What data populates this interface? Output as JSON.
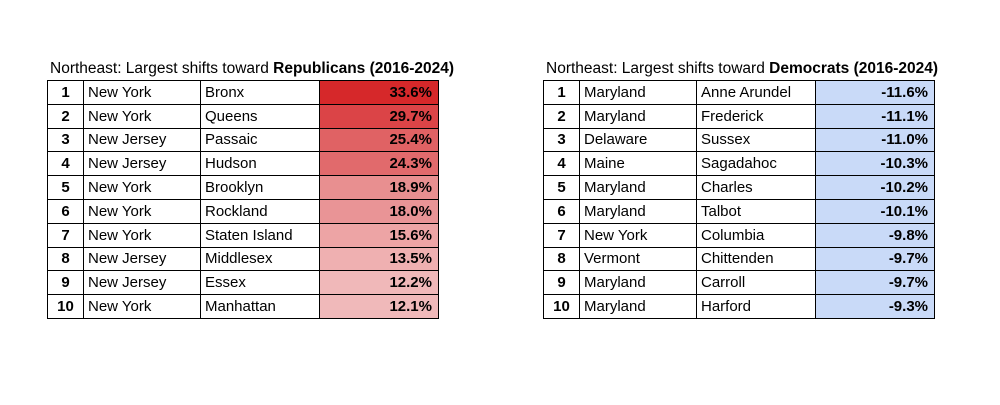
{
  "left_table": {
    "title_prefix": "Northeast: Largest shifts toward ",
    "title_bold": "Republicans (2016-2024)",
    "color": "#d6282a",
    "rows": [
      {
        "rank": "1",
        "state": "New York",
        "county": "Bronx",
        "shift": "33.6%",
        "fill": "#d6282a"
      },
      {
        "rank": "2",
        "state": "New York",
        "county": "Queens",
        "shift": "29.7%",
        "fill": "#db4447"
      },
      {
        "rank": "3",
        "state": "New Jersey",
        "county": "Passaic",
        "shift": "25.4%",
        "fill": "#e06264"
      },
      {
        "rank": "4",
        "state": "New Jersey",
        "county": "Hudson",
        "shift": "24.3%",
        "fill": "#e16a6c"
      },
      {
        "rank": "5",
        "state": "New York",
        "county": "Brooklyn",
        "shift": "18.9%",
        "fill": "#e88f90"
      },
      {
        "rank": "6",
        "state": "New York",
        "county": "Rockland",
        "shift": "18.0%",
        "fill": "#e99496"
      },
      {
        "rank": "7",
        "state": "New York",
        "county": "Staten Island",
        "shift": "15.6%",
        "fill": "#eda4a5"
      },
      {
        "rank": "8",
        "state": "New Jersey",
        "county": "Middlesex",
        "shift": "13.5%",
        "fill": "#efb0b1"
      },
      {
        "rank": "9",
        "state": "New Jersey",
        "county": "Essex",
        "shift": "12.2%",
        "fill": "#f0b8b9"
      },
      {
        "rank": "10",
        "state": "New York",
        "county": "Manhattan",
        "shift": "12.1%",
        "fill": "#f0b9ba"
      }
    ]
  },
  "right_table": {
    "title_prefix": "Northeast: Largest shifts toward ",
    "title_bold": "Democrats (2016-2024)",
    "color": "#c9daf8",
    "rows": [
      {
        "rank": "1",
        "state": "Maryland",
        "county": "Anne Arundel",
        "shift": "-11.6%",
        "fill": "#c9daf8"
      },
      {
        "rank": "2",
        "state": "Maryland",
        "county": "Frederick",
        "shift": "-11.1%",
        "fill": "#c9daf8"
      },
      {
        "rank": "3",
        "state": "Delaware",
        "county": "Sussex",
        "shift": "-11.0%",
        "fill": "#c9daf8"
      },
      {
        "rank": "4",
        "state": "Maine",
        "county": "Sagadahoc",
        "shift": "-10.3%",
        "fill": "#c9daf8"
      },
      {
        "rank": "5",
        "state": "Maryland",
        "county": "Charles",
        "shift": "-10.2%",
        "fill": "#c9daf8"
      },
      {
        "rank": "6",
        "state": "Maryland",
        "county": "Talbot",
        "shift": "-10.1%",
        "fill": "#c9daf8"
      },
      {
        "rank": "7",
        "state": "New York",
        "county": "Columbia",
        "shift": "-9.8%",
        "fill": "#c9daf8"
      },
      {
        "rank": "8",
        "state": "Vermont",
        "county": "Chittenden",
        "shift": "-9.7%",
        "fill": "#c9daf8"
      },
      {
        "rank": "9",
        "state": "Maryland",
        "county": "Carroll",
        "shift": "-9.7%",
        "fill": "#c9daf8"
      },
      {
        "rank": "10",
        "state": "Maryland",
        "county": "Harford",
        "shift": "-9.3%",
        "fill": "#c9daf8"
      }
    ]
  }
}
